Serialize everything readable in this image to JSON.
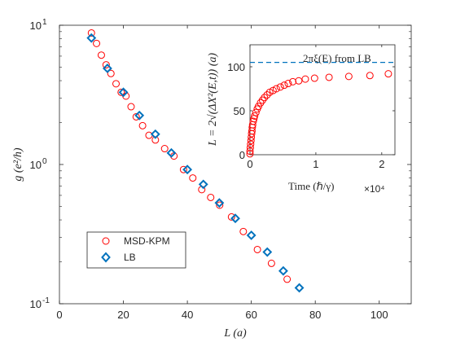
{
  "colors": {
    "msd_kpm": "#ff0000",
    "lb": "#0072bd",
    "reference_line": "#0072bd",
    "axes": "#262626",
    "background": "#ffffff"
  },
  "chart_data": [
    {
      "type": "scatter",
      "title": "",
      "xlabel": "L (a)",
      "ylabel": "g (e²/h)",
      "xlim": [
        0,
        110
      ],
      "ylim": [
        0.1,
        10
      ],
      "yscale": "log",
      "grid": false,
      "legend_placement": "bottom-left",
      "x_ticks": [
        {
          "value": 0,
          "label": "0"
        },
        {
          "value": 20,
          "label": "20"
        },
        {
          "value": 40,
          "label": "40"
        },
        {
          "value": 60,
          "label": "60"
        },
        {
          "value": 80,
          "label": "80"
        },
        {
          "value": 100,
          "label": "100"
        }
      ],
      "y_ticks": [
        {
          "value": 0.1,
          "base": "10",
          "exp": "-1"
        },
        {
          "value": 1,
          "base": "10",
          "exp": "0"
        },
        {
          "value": 10,
          "base": "10",
          "exp": "1"
        }
      ],
      "series": [
        {
          "name": "MSD-KPM",
          "marker": "circle",
          "color": "#ff0000",
          "x": [
            10.0,
            11.6,
            13.1,
            14.6,
            16.1,
            17.7,
            19.3,
            20.8,
            22.4,
            24.0,
            26.0,
            28.0,
            30.0,
            32.9,
            35.8,
            38.8,
            41.7,
            44.5,
            47.3,
            50.1,
            53.8,
            57.5,
            61.9,
            66.3,
            71.2
          ],
          "y": [
            8.8,
            7.4,
            6.1,
            5.2,
            4.5,
            3.8,
            3.3,
            3.1,
            2.6,
            2.2,
            1.9,
            1.62,
            1.5,
            1.3,
            1.15,
            0.92,
            0.8,
            0.66,
            0.58,
            0.51,
            0.42,
            0.33,
            0.245,
            0.195,
            0.15
          ]
        },
        {
          "name": "LB",
          "marker": "diamond",
          "color": "#0072bd",
          "x": [
            10.0,
            15.0,
            20.0,
            25.0,
            30.0,
            35.0,
            40.0,
            45.0,
            50.0,
            55.0,
            60.0,
            65.0,
            70.0,
            75.0
          ],
          "y": [
            8.1,
            4.9,
            3.3,
            2.25,
            1.65,
            1.21,
            0.92,
            0.72,
            0.53,
            0.41,
            0.31,
            0.235,
            0.172,
            0.13
          ]
        }
      ]
    },
    {
      "type": "scatter",
      "title": "",
      "xlabel": "Time (ℏ/γ)",
      "x_multiplier": "×10⁴",
      "ylabel": "L = 2√(ΔX²(E,t)) (a)",
      "xlim": [
        0,
        2.2
      ],
      "ylim": [
        0,
        125
      ],
      "grid": false,
      "x_ticks": [
        {
          "value": 0,
          "label": "0"
        },
        {
          "value": 1,
          "label": "1"
        },
        {
          "value": 2,
          "label": "2"
        }
      ],
      "y_ticks": [
        {
          "value": 0,
          "label": "0"
        },
        {
          "value": 50,
          "label": "50"
        },
        {
          "value": 100,
          "label": "100"
        }
      ],
      "reference_line": {
        "y": 105,
        "label": "2πξ(E) from LB",
        "style": "dashed",
        "color": "#0072bd"
      },
      "series": [
        {
          "name": "",
          "marker": "circle",
          "color": "#ff0000",
          "x": [
            0.0,
            0.0,
            0.005,
            0.01,
            0.015,
            0.02,
            0.025,
            0.03,
            0.035,
            0.04,
            0.05,
            0.06,
            0.07,
            0.09,
            0.11,
            0.13,
            0.16,
            0.19,
            0.22,
            0.26,
            0.3,
            0.35,
            0.4,
            0.46,
            0.52,
            0.58,
            0.65,
            0.74,
            0.84,
            0.98,
            1.2,
            1.5,
            1.82,
            2.1
          ],
          "y": [
            1,
            4,
            8,
            12,
            16,
            20,
            24,
            27,
            31,
            34,
            38,
            41,
            44,
            48,
            52,
            55,
            59,
            62,
            65,
            68,
            71,
            73,
            75,
            77,
            79,
            81,
            83,
            84,
            86,
            87,
            88,
            89,
            90,
            92
          ]
        }
      ]
    }
  ]
}
